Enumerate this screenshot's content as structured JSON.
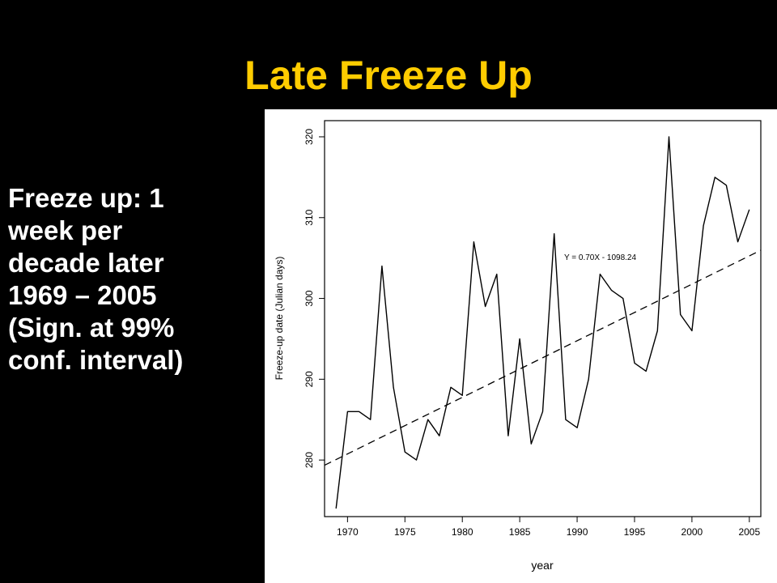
{
  "slide": {
    "title": "Late Freeze Up",
    "bullet_lines": [
      "Freeze up: 1",
      "week per",
      "decade later",
      "1969 – 2005",
      "(Sign. at 99%",
      "conf. interval)"
    ]
  },
  "colors": {
    "title": "#ffcc00",
    "text": "#ffffff",
    "background": "#000000",
    "chart_background": "#ffffff",
    "line": "#000000"
  },
  "chart_data": {
    "type": "line",
    "title": "",
    "xlabel": "year",
    "ylabel": "Freeze-up date (Julian days)",
    "xlim": [
      1968,
      2006
    ],
    "ylim": [
      273,
      322
    ],
    "x_ticks": [
      1970,
      1975,
      1980,
      1985,
      1990,
      1995,
      2000,
      2005
    ],
    "y_ticks": [
      280,
      290,
      300,
      310,
      320
    ],
    "grid": false,
    "series": [
      {
        "style": "solid",
        "x": [
          1969,
          1970,
          1971,
          1972,
          1973,
          1974,
          1975,
          1976,
          1977,
          1978,
          1979,
          1980,
          1981,
          1982,
          1983,
          1984,
          1985,
          1986,
          1987,
          1988,
          1989,
          1990,
          1991,
          1992,
          1993,
          1994,
          1995,
          1996,
          1997,
          1998,
          1999,
          2000,
          2001,
          2002,
          2003,
          2004,
          2005
        ],
        "values": [
          274,
          286,
          286,
          285,
          304,
          289,
          281,
          280,
          285,
          283,
          289,
          288,
          307,
          299,
          303,
          283,
          295,
          282,
          286,
          308,
          285,
          284,
          290,
          303,
          301,
          300,
          292,
          291,
          296,
          320,
          298,
          296,
          309,
          315,
          314,
          307,
          311
        ]
      }
    ],
    "trendline": {
      "style": "dashed",
      "equation": "Y = 0.70X - 1098.24",
      "slope": 0.7,
      "intercept": -1098.24
    }
  }
}
